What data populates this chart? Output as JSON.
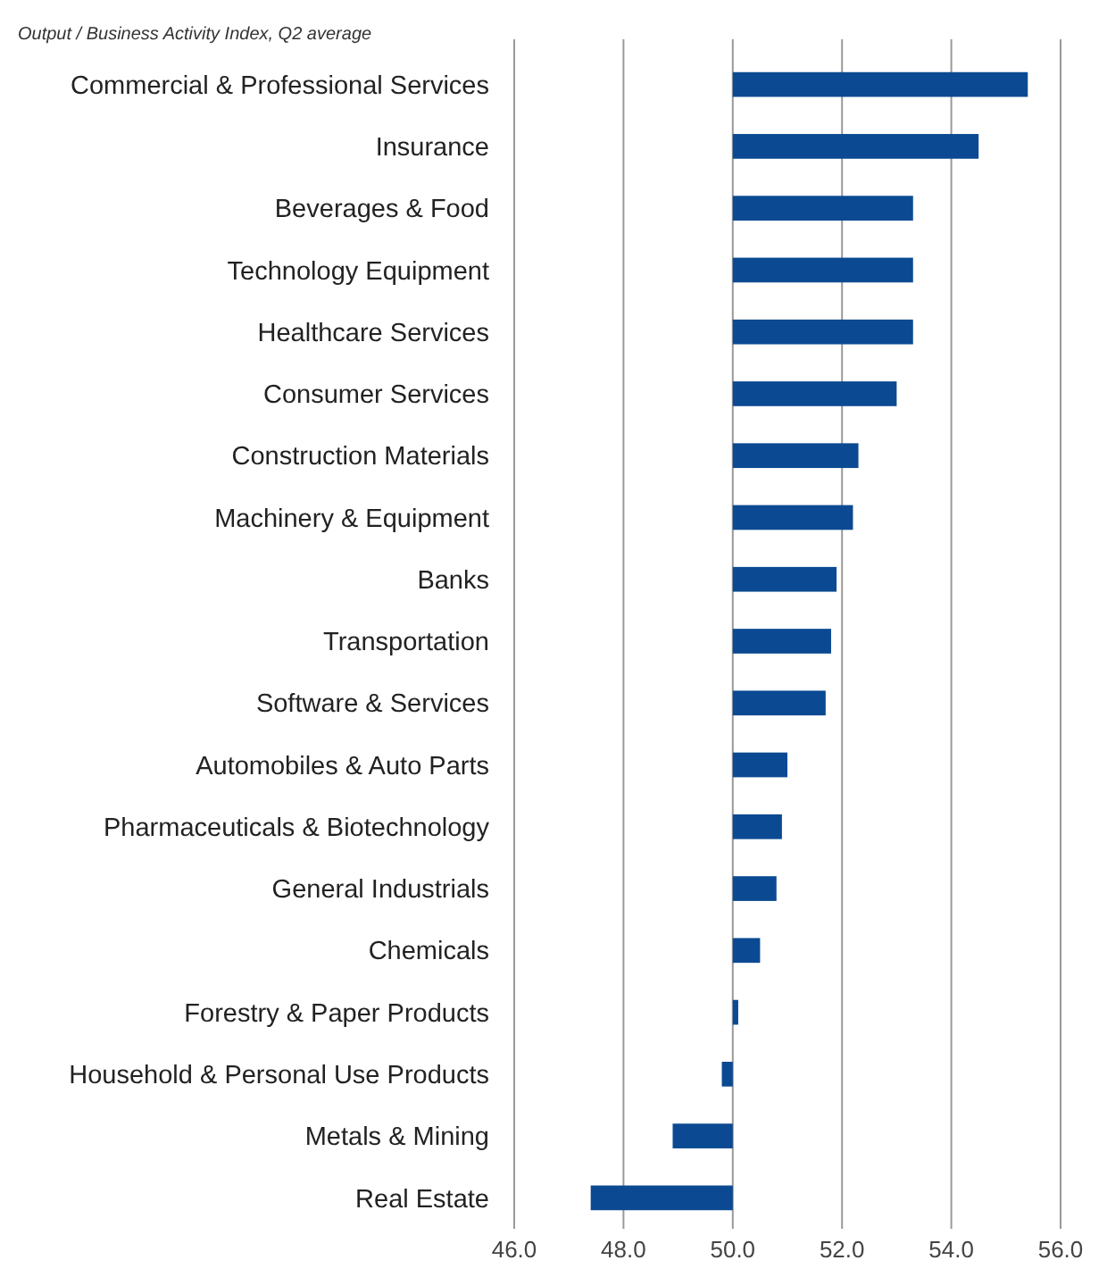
{
  "chart_data": {
    "type": "bar",
    "orientation": "horizontal",
    "title": "Output / Business Activity Index, Q2 average",
    "categories": [
      "Commercial & Professional Services",
      "Insurance",
      "Beverages & Food",
      "Technology Equipment",
      "Healthcare Services",
      "Consumer Services",
      "Construction Materials",
      "Machinery & Equipment",
      "Banks",
      "Transportation",
      "Software & Services",
      "Automobiles & Auto Parts",
      "Pharmaceuticals & Biotechnology",
      "General Industrials",
      "Chemicals",
      "Forestry & Paper Products",
      "Household & Personal Use Products",
      "Metals & Mining",
      "Real Estate"
    ],
    "base": [
      50,
      50,
      50,
      50,
      50,
      50,
      50,
      50,
      50,
      50,
      50,
      50,
      50,
      50,
      50,
      50,
      50,
      50,
      50
    ],
    "values": [
      5.4,
      4.5,
      3.3,
      3.3,
      3.3,
      3.0,
      2.3,
      2.2,
      1.9,
      1.8,
      1.7,
      1.0,
      0.9,
      0.8,
      0.5,
      0.1,
      -0.2,
      -1.1,
      -2.6
    ],
    "color": "#0b4a92",
    "xlim": [
      46,
      56
    ],
    "xticks": [
      {
        "value": 46,
        "label": "46.0"
      },
      {
        "value": 48,
        "label": "48.0"
      },
      {
        "value": 50,
        "label": "50.0"
      },
      {
        "value": 52,
        "label": "52.0"
      },
      {
        "value": 54,
        "label": "54.0"
      },
      {
        "value": 56,
        "label": "56.0"
      }
    ],
    "grid": "x"
  }
}
